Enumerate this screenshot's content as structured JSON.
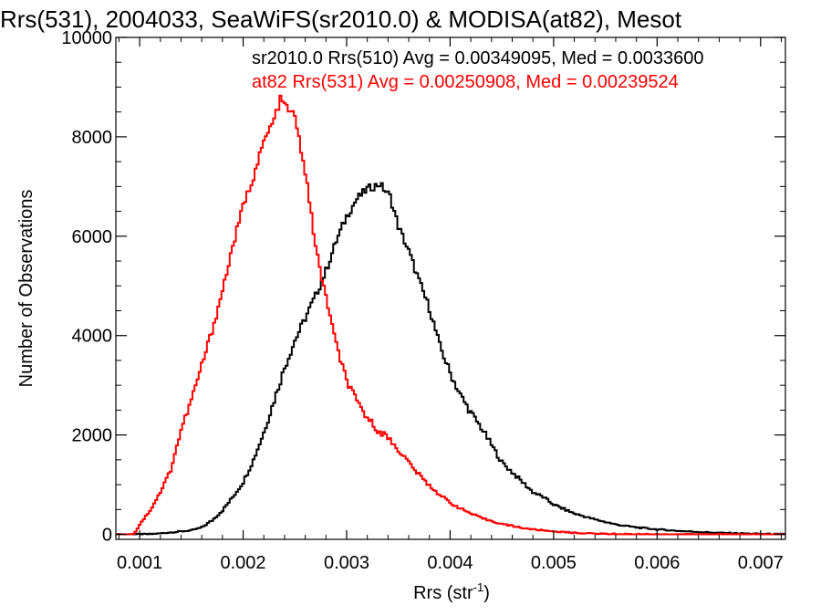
{
  "chart_data": {
    "type": "line",
    "title": "Rrs(531), 2004033, SeaWiFS(sr2010.0) & MODISA(at82), Mesot",
    "xlabel": "Rrs (str",
    "xlabel_sup": "-1",
    "xlabel_close": ")",
    "ylabel": "Number of Observations",
    "xlim": [
      0.00077,
      0.00724
    ],
    "ylim": [
      -100,
      10000
    ],
    "x_ticks": [
      0.001,
      0.002,
      0.003,
      0.004,
      0.005,
      0.006,
      0.007
    ],
    "x_tick_labels": [
      "0.001",
      "0.002",
      "0.003",
      "0.004",
      "0.005",
      "0.006",
      "0.007"
    ],
    "y_ticks": [
      0,
      2000,
      4000,
      6000,
      8000,
      10000
    ],
    "y_tick_labels": [
      "0",
      "2000",
      "4000",
      "6000",
      "8000",
      "10000"
    ],
    "grid": false,
    "legend_placement": "top",
    "series": [
      {
        "name": "sr2010.0 Rrs(510) Avg = 0.00349095, Med = 0.0033600",
        "color": "#000000",
        "points": [
          [
            0.00077,
            0
          ],
          [
            0.0011,
            5
          ],
          [
            0.0012,
            20
          ],
          [
            0.0013,
            40
          ],
          [
            0.0014,
            60
          ],
          [
            0.0015,
            80
          ],
          [
            0.0016,
            140
          ],
          [
            0.0017,
            280
          ],
          [
            0.0018,
            480
          ],
          [
            0.0019,
            750
          ],
          [
            0.002,
            1050
          ],
          [
            0.0021,
            1500
          ],
          [
            0.0022,
            2050
          ],
          [
            0.0023,
            2700
          ],
          [
            0.0024,
            3350
          ],
          [
            0.0025,
            3900
          ],
          [
            0.0026,
            4350
          ],
          [
            0.0027,
            4800
          ],
          [
            0.0028,
            5300
          ],
          [
            0.0029,
            5900
          ],
          [
            0.003,
            6400
          ],
          [
            0.0031,
            6750
          ],
          [
            0.0032,
            6950
          ],
          [
            0.00332,
            7050
          ],
          [
            0.00342,
            6800
          ],
          [
            0.0035,
            6200
          ],
          [
            0.0036,
            5700
          ],
          [
            0.0037,
            5100
          ],
          [
            0.0038,
            4550
          ],
          [
            0.0039,
            3800
          ],
          [
            0.004,
            3250
          ],
          [
            0.0041,
            2800
          ],
          [
            0.0042,
            2450
          ],
          [
            0.0043,
            2150
          ],
          [
            0.0044,
            1800
          ],
          [
            0.0045,
            1450
          ],
          [
            0.0046,
            1250
          ],
          [
            0.0047,
            1050
          ],
          [
            0.0048,
            850
          ],
          [
            0.0049,
            750
          ],
          [
            0.005,
            600
          ],
          [
            0.0052,
            420
          ],
          [
            0.0054,
            300
          ],
          [
            0.0056,
            200
          ],
          [
            0.0058,
            140
          ],
          [
            0.006,
            100
          ],
          [
            0.0062,
            70
          ],
          [
            0.0064,
            50
          ],
          [
            0.0066,
            30
          ],
          [
            0.0068,
            20
          ],
          [
            0.007,
            10
          ],
          [
            0.00724,
            5
          ]
        ]
      },
      {
        "name": "at82 Rrs(531) Avg = 0.00250908, Med = 0.00239524",
        "color": "#ff0000",
        "points": [
          [
            0.00077,
            0
          ],
          [
            0.00093,
            0
          ],
          [
            0.00097,
            80
          ],
          [
            0.001,
            200
          ],
          [
            0.0011,
            480
          ],
          [
            0.0012,
            850
          ],
          [
            0.0013,
            1300
          ],
          [
            0.0014,
            2100
          ],
          [
            0.0015,
            2700
          ],
          [
            0.0016,
            3400
          ],
          [
            0.0017,
            4100
          ],
          [
            0.0018,
            4900
          ],
          [
            0.0019,
            5800
          ],
          [
            0.002,
            6600
          ],
          [
            0.0021,
            7200
          ],
          [
            0.0022,
            7900
          ],
          [
            0.0023,
            8350
          ],
          [
            0.00236,
            8750
          ],
          [
            0.0024,
            8650
          ],
          [
            0.0025,
            8400
          ],
          [
            0.0026,
            7300
          ],
          [
            0.00268,
            6100
          ],
          [
            0.00275,
            5200
          ],
          [
            0.0028,
            4800
          ],
          [
            0.0029,
            3800
          ],
          [
            0.003,
            3100
          ],
          [
            0.0031,
            2650
          ],
          [
            0.0032,
            2350
          ],
          [
            0.0033,
            2100
          ],
          [
            0.0034,
            1950
          ],
          [
            0.0035,
            1700
          ],
          [
            0.0036,
            1450
          ],
          [
            0.0037,
            1200
          ],
          [
            0.0038,
            980
          ],
          [
            0.0039,
            800
          ],
          [
            0.004,
            640
          ],
          [
            0.0041,
            520
          ],
          [
            0.0042,
            420
          ],
          [
            0.0043,
            330
          ],
          [
            0.0044,
            270
          ],
          [
            0.0045,
            210
          ],
          [
            0.0046,
            170
          ],
          [
            0.0047,
            130
          ],
          [
            0.0048,
            100
          ],
          [
            0.0049,
            80
          ],
          [
            0.005,
            60
          ],
          [
            0.0052,
            30
          ],
          [
            0.0054,
            15
          ],
          [
            0.0056,
            8
          ],
          [
            0.006,
            2
          ],
          [
            0.00724,
            0
          ]
        ]
      }
    ]
  }
}
